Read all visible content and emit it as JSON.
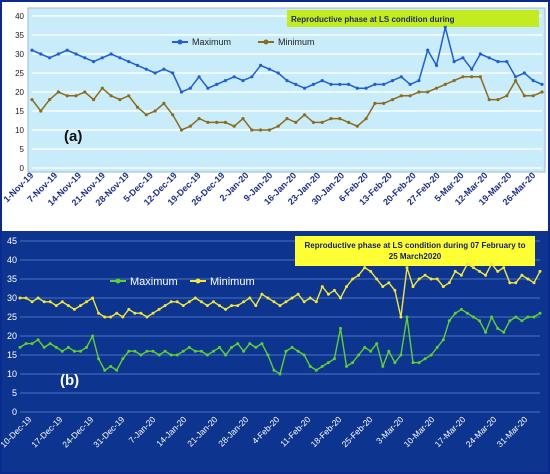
{
  "chart_data": [
    {
      "panel_label": "(a)",
      "type": "line",
      "title": "Reproductive phase at LS condition during",
      "ylim": [
        0,
        40
      ],
      "yticks": [
        0,
        5,
        10,
        15,
        20,
        25,
        30,
        35,
        40
      ],
      "grid": true,
      "legend_position": "top-center",
      "x_tick_labels": [
        "1-Nov-19",
        "7-Nov-19",
        "14-Nov-19",
        "21-Nov-19",
        "28-Nov-19",
        "5-Dec-19",
        "12-Dec-19",
        "19-Dec-19",
        "26-Dec-19",
        "2-Jan-20",
        "9-Jan-20",
        "16-Jan-20",
        "23-Jan-20",
        "30-Jan-20",
        "6-Feb-20",
        "13-Feb-20",
        "20-Feb-20",
        "27-Feb-20",
        "5-Mar-20",
        "12-Mar-20",
        "19-Mar-20",
        "26-Mar-20"
      ],
      "series": [
        {
          "name": "Maximum",
          "color": "#1f5fd6",
          "values": [
            31,
            30,
            29,
            30,
            31,
            30,
            29,
            28,
            29,
            30,
            29,
            28,
            27,
            26,
            25,
            26,
            25,
            20,
            21,
            24,
            21,
            22,
            23,
            24,
            23,
            24,
            27,
            26,
            25,
            23,
            22,
            21,
            22,
            23,
            22,
            22,
            22,
            21,
            21,
            22,
            22,
            23,
            24,
            22,
            23,
            31,
            27,
            37,
            28,
            29,
            26,
            30,
            29,
            28,
            28,
            24,
            25,
            23,
            22
          ]
        },
        {
          "name": "Minimum",
          "color": "#8a6d1c",
          "values": [
            18,
            15,
            18,
            20,
            19,
            19,
            20,
            18,
            21,
            19,
            18,
            19,
            16,
            14,
            15,
            17,
            14,
            10,
            11,
            13,
            12,
            12,
            12,
            11,
            13,
            10,
            10,
            10,
            11,
            13,
            12,
            14,
            12,
            12,
            13,
            13,
            12,
            11,
            13,
            17,
            17,
            18,
            19,
            19,
            20,
            20,
            21,
            22,
            23,
            24,
            24,
            24,
            18,
            18,
            19,
            23,
            19,
            19,
            20
          ]
        }
      ]
    },
    {
      "panel_label": "(b)",
      "type": "line",
      "title": "Reproductive phase at LS condition during 07 February to 25 March2020",
      "ylim": [
        0,
        45
      ],
      "yticks": [
        0,
        5,
        10,
        15,
        20,
        25,
        30,
        35,
        40,
        45
      ],
      "grid": true,
      "legend_position": "top-left",
      "x_tick_labels": [
        "10-Dec-19",
        "17-Dec-19",
        "24-Dec-19",
        "31-Dec-19",
        "7-Jan-20",
        "14-Jan-20",
        "21-Jan-20",
        "28-Jan-20",
        "4-Feb-20",
        "11-Feb-20",
        "18-Feb-20",
        "25-Feb-20",
        "3-Mar-20",
        "10-Mar-20",
        "17-Mar-20",
        "24-Mar-20",
        "31-Mar-20"
      ],
      "series": [
        {
          "name": "Maximum",
          "color": "#5fd12e",
          "values": [
            17,
            18,
            18,
            19,
            17,
            18,
            17,
            16,
            17,
            16,
            16,
            17,
            20,
            14,
            11,
            12,
            11,
            14,
            16,
            16,
            15,
            16,
            16,
            15,
            16,
            15,
            15,
            16,
            17,
            16,
            16,
            15,
            16,
            17,
            15,
            17,
            18,
            16,
            18,
            17,
            18,
            15,
            11,
            10,
            16,
            17,
            16,
            15,
            12,
            11,
            12,
            13,
            14,
            22,
            12,
            13,
            15,
            17,
            16,
            18,
            12,
            16,
            13,
            15,
            25,
            13,
            13,
            14,
            15,
            17,
            19,
            24,
            26,
            27,
            26,
            25,
            24,
            21,
            25,
            22,
            21,
            24,
            25,
            24,
            25,
            25,
            26
          ]
        },
        {
          "name": "Minimum",
          "color": "#f2e63a",
          "values": [
            30,
            30,
            29,
            30,
            29,
            29,
            28,
            29,
            28,
            27,
            28,
            29,
            30,
            26,
            25,
            25,
            26,
            25,
            27,
            26,
            26,
            25,
            26,
            27,
            28,
            29,
            29,
            28,
            29,
            30,
            29,
            28,
            29,
            28,
            27,
            28,
            28,
            29,
            30,
            28,
            31,
            30,
            29,
            28,
            29,
            30,
            31,
            29,
            30,
            29,
            33,
            31,
            32,
            30,
            33,
            35,
            36,
            38,
            37,
            35,
            33,
            34,
            32,
            25,
            38,
            33,
            35,
            36,
            35,
            35,
            33,
            34,
            37,
            36,
            39,
            38,
            37,
            36,
            39,
            37,
            38,
            34,
            34,
            36,
            35,
            34,
            37
          ]
        }
      ]
    }
  ],
  "colors": {
    "frame": "#0b2a8f",
    "panel_a_plot_bg": "#c8ecfa",
    "panel_b_plot_bg": "#0d3590",
    "title_a_bg": "#c2ec1f",
    "title_b_bg": "#ffff33"
  }
}
